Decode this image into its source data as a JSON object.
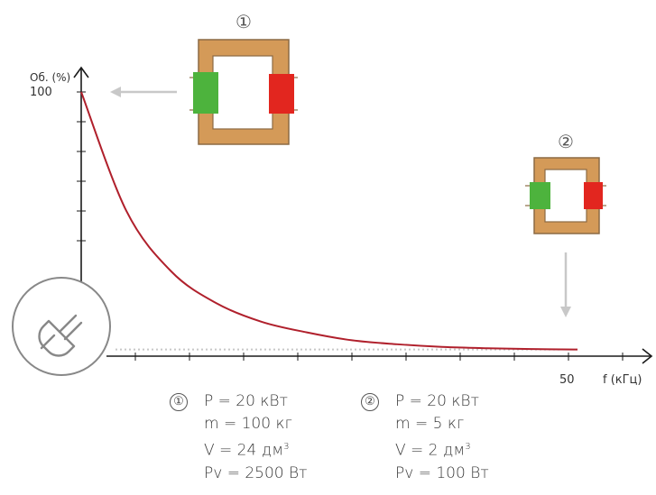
{
  "colors": {
    "curve": "#b0202c",
    "axis": "#1a1a1a",
    "core": "#d49a58",
    "core_border": "#8c6a44",
    "winding_primary": "#4db33d",
    "winding_secondary": "#e2261f",
    "arrow": "#c8c8c8",
    "plug_circle": "#888888"
  },
  "icons": [
    "plug-icon",
    "transformer-large-icon",
    "transformer-small-icon",
    "arrow-left-icon",
    "arrow-down-icon"
  ],
  "chart_data": {
    "type": "line",
    "ylabel": "Об. (%)",
    "xlabel": "f (кГц)",
    "y_tick_label": "100",
    "x_tick_label": "50",
    "y_ticks_count": 6,
    "x_ticks_count": 10,
    "series": [
      {
        "x": [
          0,
          5,
          10,
          15,
          20,
          25,
          30,
          35,
          40,
          45,
          50,
          55
        ],
        "y": [
          100,
          55,
          32,
          20,
          13,
          9,
          6,
          4.5,
          3.5,
          3,
          2.7,
          2.5
        ]
      }
    ],
    "asymptote": 2.5,
    "xlim": [
      0,
      60
    ],
    "ylim": [
      0,
      100
    ]
  },
  "transformers": [
    {
      "id": "①",
      "label": "①"
    },
    {
      "id": "②",
      "label": "②"
    }
  ],
  "specs": [
    {
      "num": "①",
      "p": "P = 20 кВт",
      "m": "m = 100 кг",
      "v": "V = 24 дм",
      "v_sup": "3",
      "pv": "Pv = 2500 Вт"
    },
    {
      "num": "②",
      "p": "P = 20 кВт",
      "m": "m = 5 кг",
      "v": "V = 2 дм",
      "v_sup": "3",
      "pv": "Pv = 100 Вт"
    }
  ]
}
